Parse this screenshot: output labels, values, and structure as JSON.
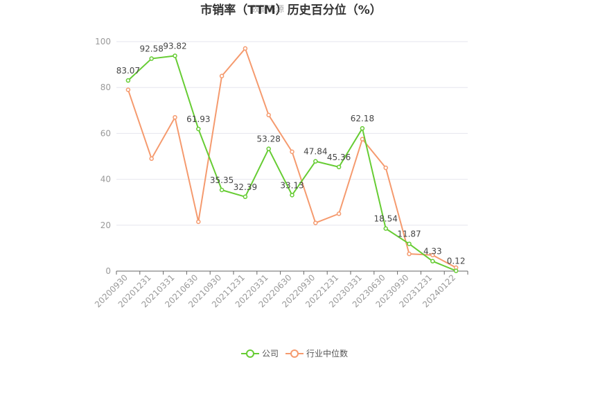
{
  "chart_data": {
    "type": "line",
    "title": "市销率（TTM）历史百分位（%）",
    "watermark": "数据来源",
    "categories": [
      "20200930",
      "20201231",
      "20210331",
      "20210630",
      "20210930",
      "20211231",
      "20220331",
      "20220630",
      "20220930",
      "20221231",
      "20230331",
      "20230630",
      "20230930",
      "20231231",
      "20240122"
    ],
    "series": [
      {
        "name": "公司",
        "color": "#66cc33",
        "values": [
          83.07,
          92.58,
          93.82,
          61.93,
          35.35,
          32.39,
          53.28,
          33.13,
          47.84,
          45.36,
          62.18,
          18.54,
          11.87,
          4.33,
          0.12
        ],
        "labels": [
          "83.07",
          "92.58",
          "93.82",
          "61.93",
          "35.35",
          "32.39",
          "53.28",
          "33.13",
          "47.84",
          "45.36",
          "62.18",
          "18.54",
          "11.87",
          "4.33",
          "0.12"
        ]
      },
      {
        "name": "行业中位数",
        "color": "#f59a6e",
        "values": [
          79,
          49,
          67,
          21.5,
          85,
          97,
          68,
          52,
          21,
          25,
          57.5,
          45,
          7.5,
          7,
          1.5
        ]
      }
    ],
    "ylim": [
      0,
      100
    ],
    "yticks": [
      "0",
      "20",
      "40",
      "60",
      "80",
      "100"
    ],
    "grid": true,
    "legend_position": "bottom"
  }
}
